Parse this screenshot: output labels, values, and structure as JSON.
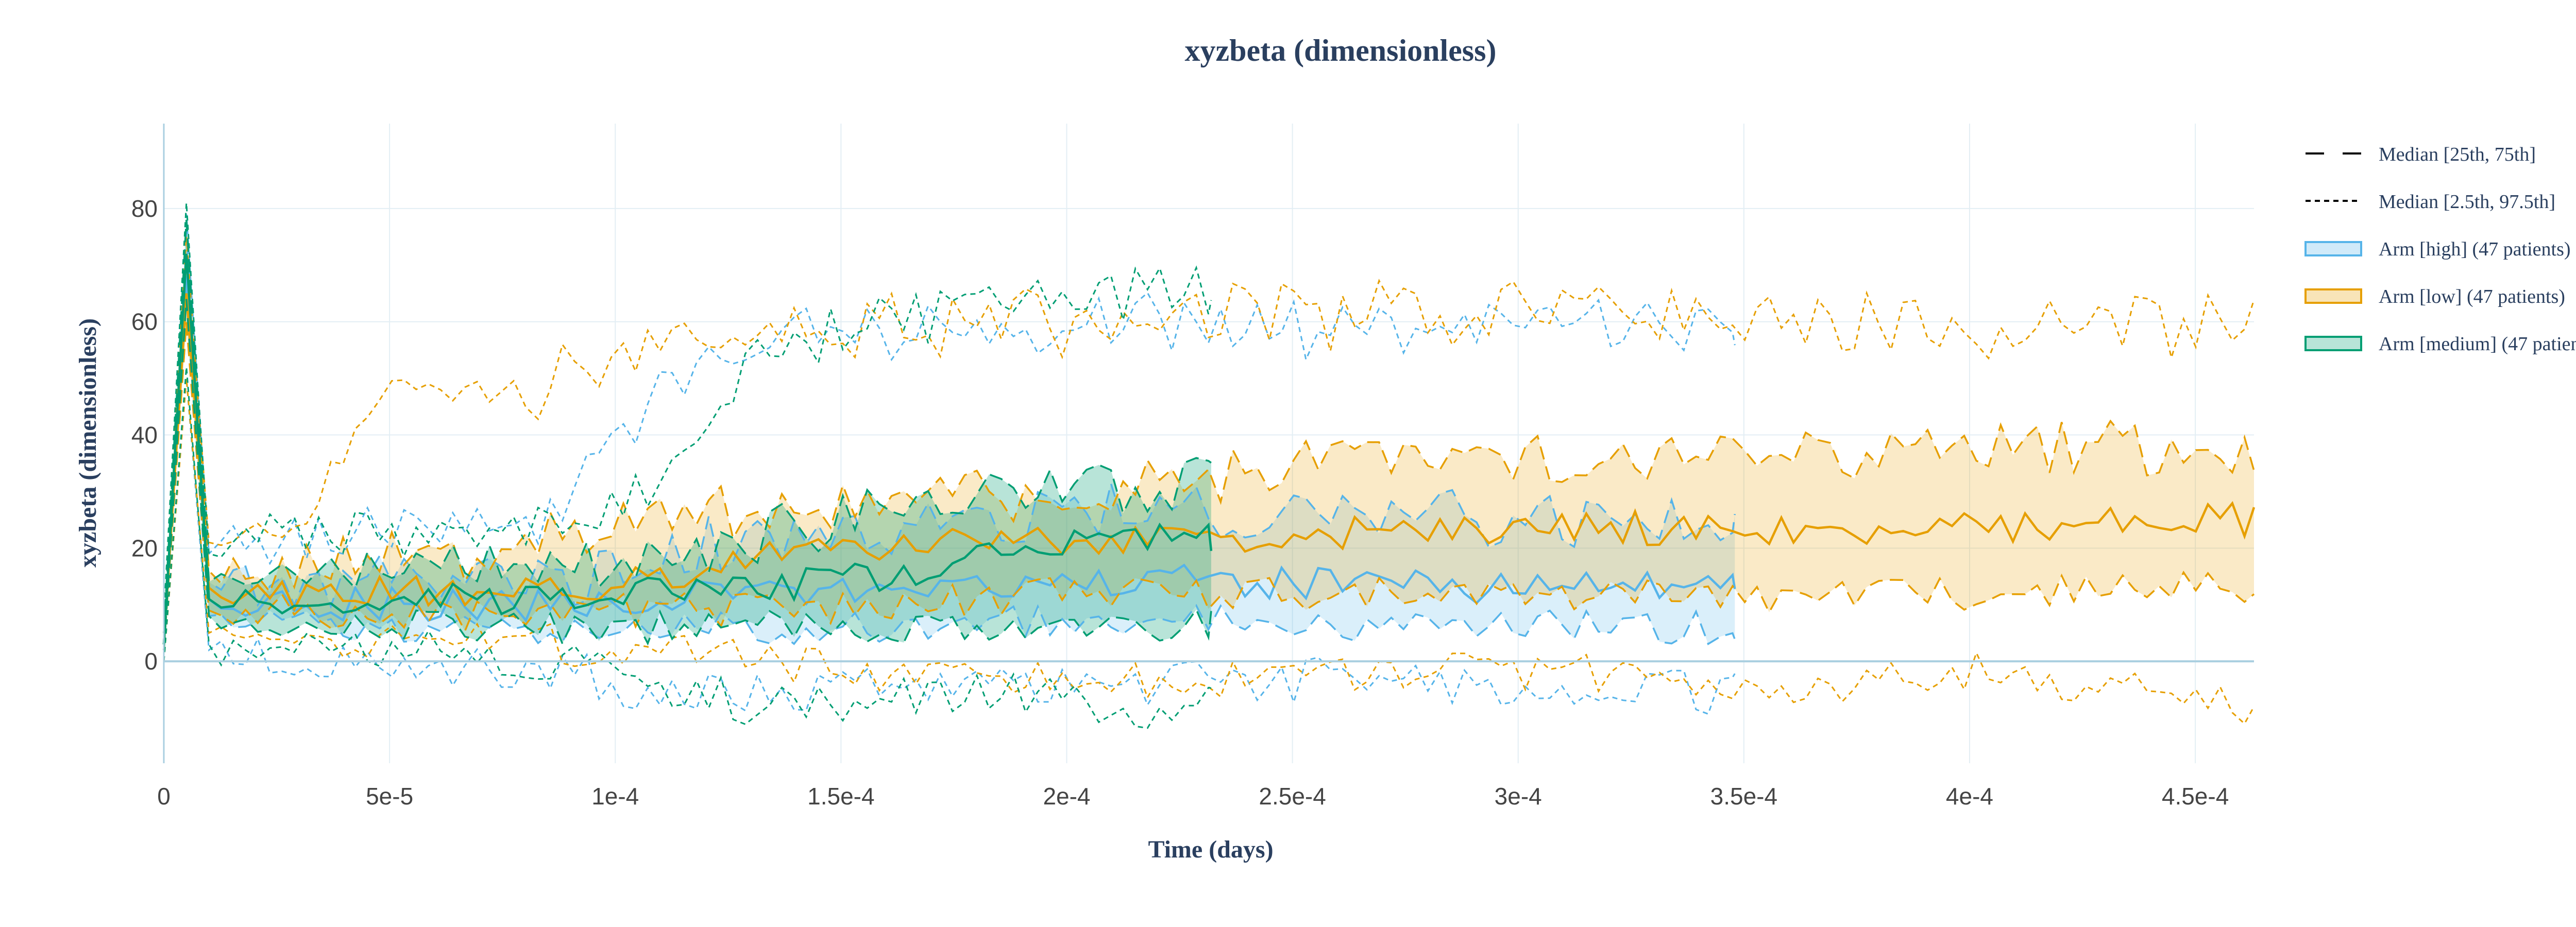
{
  "chart_data": {
    "type": "line",
    "title": "xyzbeta (dimensionless)",
    "xlabel": "Time (days)",
    "ylabel": "xyzbeta (dimensionless)",
    "xlim": [
      0,
      0.000463
    ],
    "ylim": [
      -18,
      95
    ],
    "xticks": [
      0,
      5e-05,
      0.0001,
      0.00015,
      0.0002,
      0.00025,
      0.0003,
      0.00035,
      0.0004,
      0.00045
    ],
    "xtick_labels": [
      "0",
      "5e-5",
      "1e-4",
      "1.5e-4",
      "2e-4",
      "2.5e-4",
      "3e-4",
      "3.5e-4",
      "4e-4",
      "4.5e-4"
    ],
    "yticks": [
      0,
      20,
      40,
      60,
      80
    ],
    "ytick_labels": [
      "0",
      "20",
      "40",
      "60",
      "80"
    ],
    "grid": true,
    "legend_position": "right",
    "legend": [
      {
        "label": "Median [25th, 75th]",
        "kind": "dash-long"
      },
      {
        "label": "Median [2.5th, 97.5th]",
        "kind": "dash-short"
      },
      {
        "label": "Arm [high] (47 patients)",
        "kind": "fill",
        "color": "#56b4e9"
      },
      {
        "label": "Arm [low] (47 patients)",
        "kind": "fill",
        "color": "#e69f00"
      },
      {
        "label": "Arm [medium] (47 patients)",
        "kind": "fill",
        "color": "#009e73"
      }
    ],
    "series": [
      {
        "name": "Arm [low] (47 patients)",
        "color": "#e69f00",
        "x_end": 0.000463,
        "control_points": [
          [
            0,
            3,
            5,
            2,
            1,
            0,
            8
          ],
          [
            5e-06,
            65,
            72,
            60,
            56,
            50,
            80
          ],
          [
            1e-05,
            13,
            16,
            9,
            20,
            5,
            22
          ],
          [
            3e-05,
            12,
            16,
            9,
            22,
            5,
            26
          ],
          [
            5e-05,
            12,
            18,
            8,
            40,
            4,
            62
          ],
          [
            8e-05,
            13,
            20,
            8,
            47,
            3,
            47
          ],
          [
            0.0001,
            14,
            26,
            9,
            52,
            2,
            55
          ],
          [
            0.00013,
            18,
            26,
            9,
            55,
            0,
            60
          ],
          [
            0.00016,
            20,
            28,
            10,
            58,
            -2,
            58
          ],
          [
            0.0002,
            22,
            30,
            12,
            60,
            -4,
            60
          ],
          [
            0.00025,
            22,
            34,
            12,
            60,
            -4,
            60
          ],
          [
            0.0003,
            24,
            36,
            12,
            61,
            -2,
            61
          ],
          [
            0.00035,
            23,
            36,
            11,
            59,
            -4,
            59
          ],
          [
            0.0004,
            24,
            38,
            12,
            58,
            -2,
            58
          ],
          [
            0.000463,
            25,
            37,
            13,
            58,
            -8,
            60
          ]
        ]
      },
      {
        "name": "Arm [high] (47 patients)",
        "color": "#56b4e9",
        "x_end": 0.000348,
        "control_points": [
          [
            0,
            3,
            5,
            2,
            1,
            0,
            8
          ],
          [
            5e-06,
            68,
            76,
            60,
            58,
            50,
            88
          ],
          [
            1e-05,
            11,
            14,
            8,
            18,
            2,
            20
          ],
          [
            3e-05,
            10,
            14,
            7,
            19,
            1,
            22
          ],
          [
            6e-05,
            10,
            14,
            6,
            20,
            0,
            24
          ],
          [
            9e-05,
            10,
            14,
            6,
            22,
            -2,
            30
          ],
          [
            0.00011,
            11,
            20,
            6,
            40,
            -6,
            62
          ],
          [
            0.00014,
            12,
            22,
            6,
            50,
            -5,
            66
          ],
          [
            0.00018,
            14,
            25,
            7,
            55,
            -4,
            62
          ],
          [
            0.00022,
            14,
            27,
            8,
            55,
            -4,
            66
          ],
          [
            0.00026,
            14,
            26,
            6,
            55,
            -3,
            62
          ],
          [
            0.0003,
            13,
            25,
            6,
            55,
            -4,
            64
          ],
          [
            0.000348,
            13,
            25,
            6,
            55,
            -6,
            65
          ]
        ]
      },
      {
        "name": "Arm [medium] (47 patients)",
        "color": "#009e73",
        "x_end": 0.000232,
        "control_points": [
          [
            0,
            3,
            5,
            2,
            1,
            0,
            8
          ],
          [
            5e-06,
            72,
            78,
            64,
            60,
            52,
            82
          ],
          [
            1e-05,
            11,
            14,
            8,
            18,
            3,
            20
          ],
          [
            4e-05,
            11,
            15,
            7,
            19,
            3,
            22
          ],
          [
            8e-05,
            11,
            16,
            6,
            20,
            1,
            24
          ],
          [
            0.00011,
            12,
            17,
            6,
            22,
            -4,
            40
          ],
          [
            0.00013,
            13,
            22,
            6,
            45,
            -8,
            65
          ],
          [
            0.00016,
            15,
            26,
            6,
            58,
            -7,
            62
          ],
          [
            0.00019,
            20,
            30,
            6,
            60,
            -6,
            66
          ],
          [
            0.00021,
            21,
            30,
            6,
            62,
            -9,
            70
          ],
          [
            0.000232,
            22,
            32,
            7,
            62,
            -6,
            70
          ]
        ]
      }
    ]
  }
}
